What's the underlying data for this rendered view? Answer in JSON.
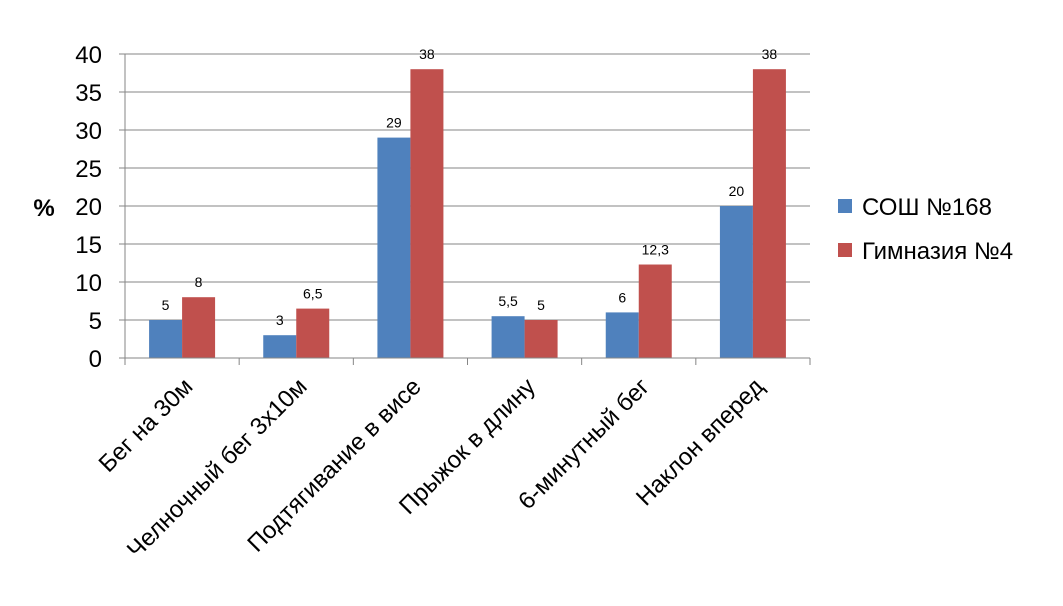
{
  "chart_data": {
    "type": "bar",
    "ylabel": "%",
    "ylim": [
      0,
      40
    ],
    "yticks": [
      0,
      5,
      10,
      15,
      20,
      25,
      30,
      35,
      40
    ],
    "grid": true,
    "legend_position": "right",
    "categories": [
      "Бег на 30м",
      "Челночный бег 3х10м",
      "Подтягивание в висе",
      "Прыжок в длину",
      "6-минутный бег",
      "Наклон вперед"
    ],
    "series": [
      {
        "name": "СОШ №168",
        "color": "#4F81BD",
        "values": [
          5,
          3,
          29,
          5.5,
          6,
          20
        ],
        "labels": [
          "5",
          "3",
          "29",
          "5,5",
          "6",
          "20"
        ]
      },
      {
        "name": "Гимназия №4",
        "color": "#C0504D",
        "values": [
          8,
          6.5,
          38,
          5,
          12.3,
          38
        ],
        "labels": [
          "8",
          "6,5",
          "38",
          "5",
          "12,3",
          "38"
        ]
      }
    ]
  }
}
